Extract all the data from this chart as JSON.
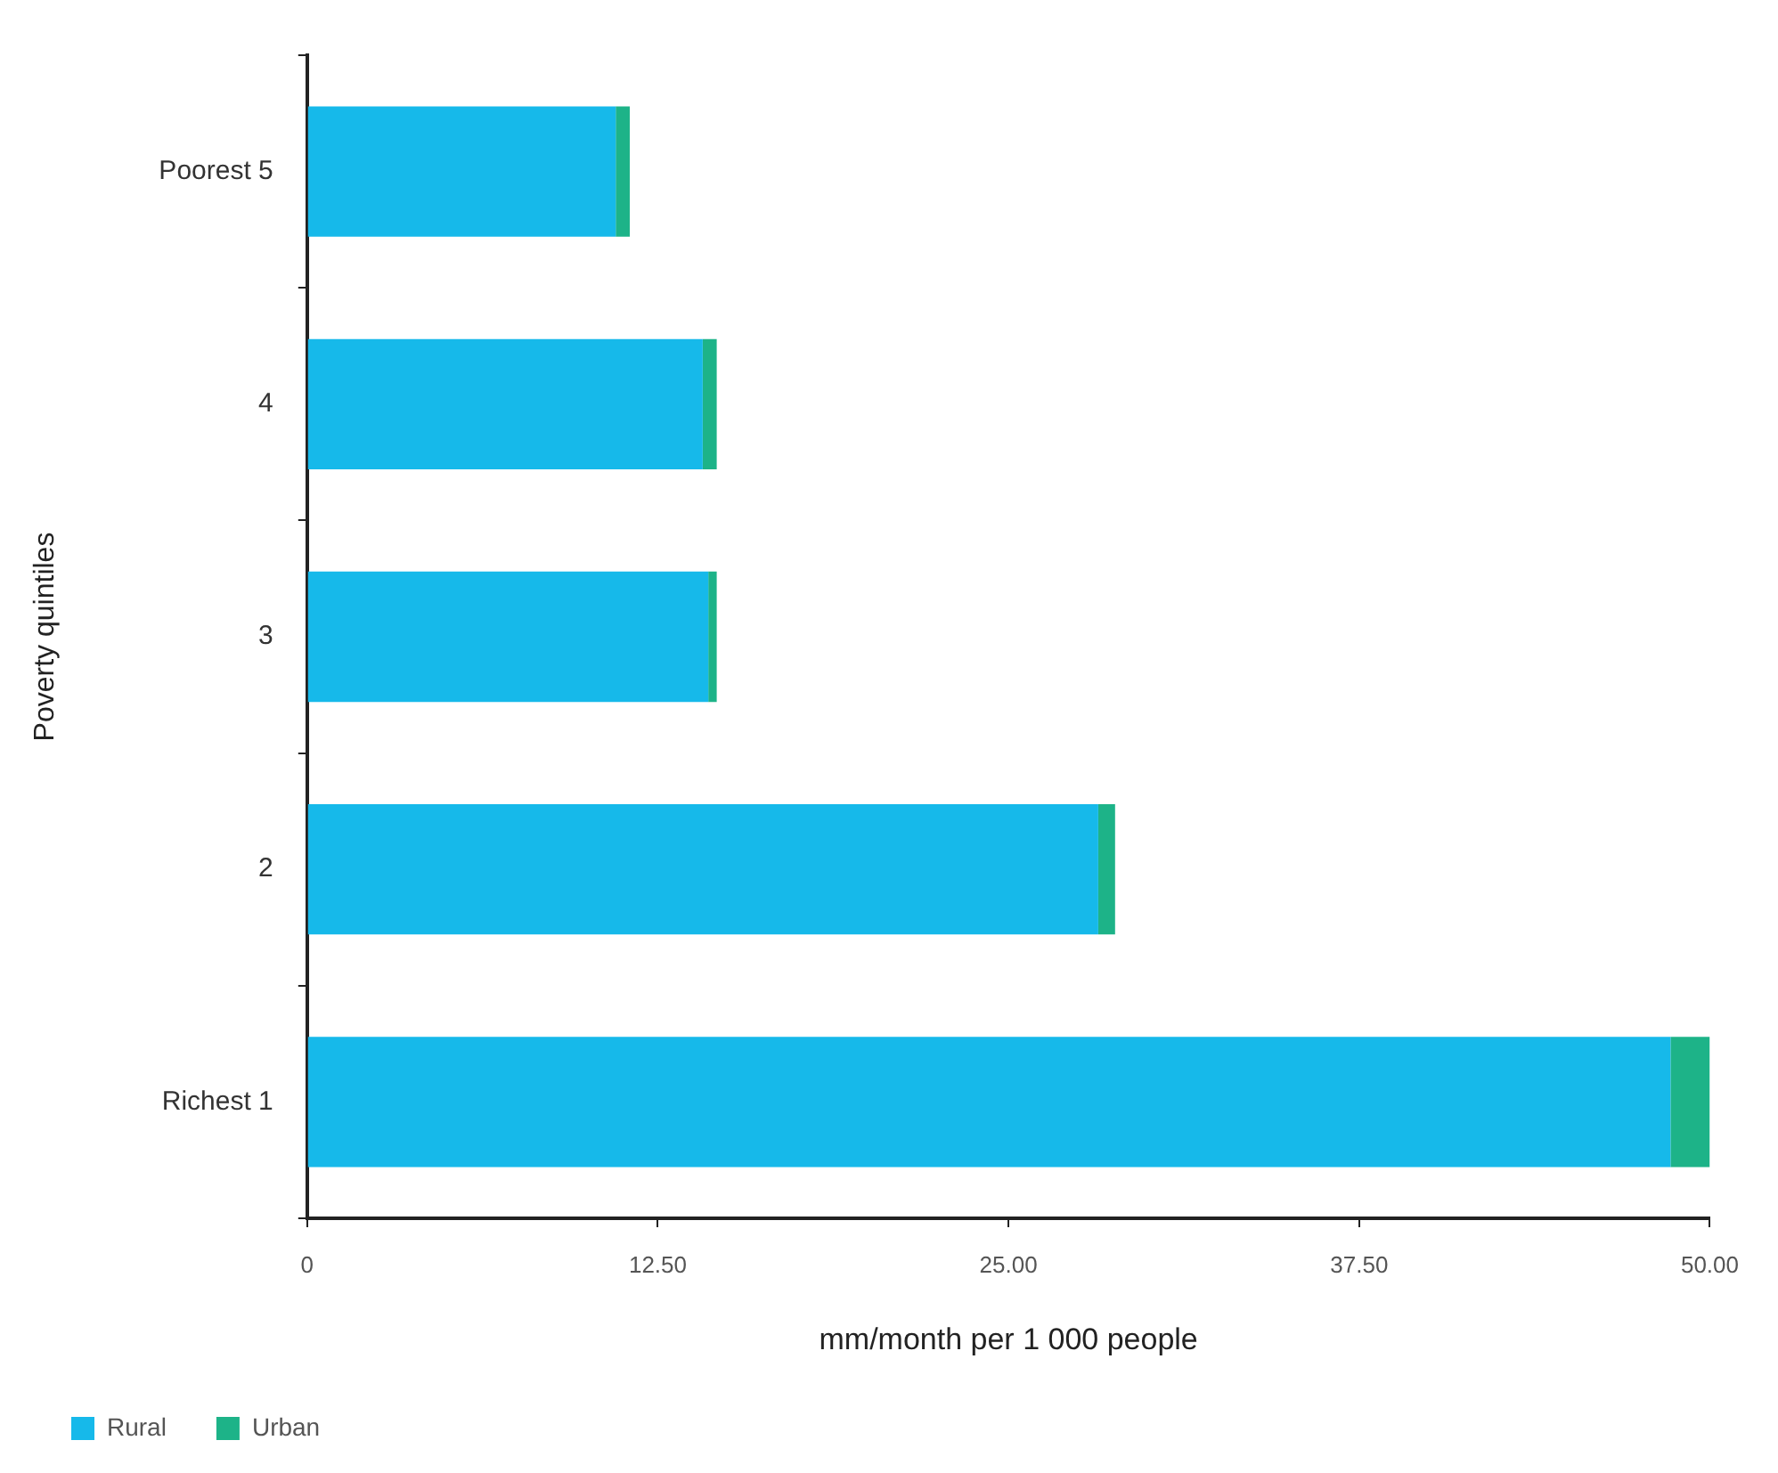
{
  "chart_data": {
    "type": "bar",
    "orientation": "horizontal",
    "stacked": true,
    "xlabel": "mm/month per 1 000 people",
    "ylabel": "Poverty quintiles",
    "categories": [
      "Poorest 5",
      "4",
      "3",
      "2",
      "Richest 1"
    ],
    "series": [
      {
        "name": "Rural",
        "color": "#16b9ea",
        "values": [
          11.0,
          14.1,
          14.3,
          28.2,
          48.6
        ]
      },
      {
        "name": "Urban",
        "color": "#1db388",
        "values": [
          0.5,
          0.5,
          0.3,
          0.6,
          1.4
        ]
      }
    ],
    "xlim": [
      0,
      50
    ],
    "xticks": [
      0,
      {
        "value": 12.5,
        "label": "12.50"
      },
      {
        "value": 25,
        "label": "25.00"
      },
      {
        "value": 37.5,
        "label": "37.50"
      },
      {
        "value": 50,
        "label": "50.00"
      }
    ],
    "grid": false,
    "legend": "bottom left"
  }
}
